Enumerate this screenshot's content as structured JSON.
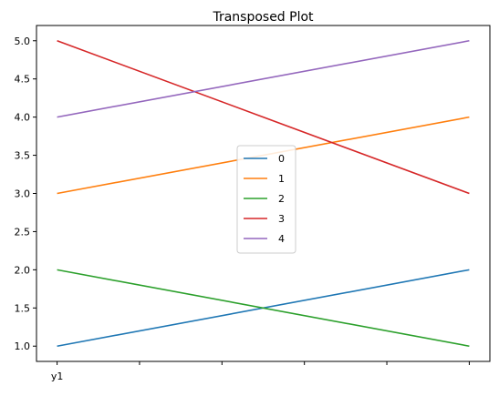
{
  "chart_data": {
    "type": "line",
    "title": "Transposed Plot",
    "xlabel": "",
    "ylabel": "",
    "x": [
      0,
      1
    ],
    "x_tick_labels": [
      "y1",
      "",
      "",
      "",
      "",
      ""
    ],
    "y_ticks": [
      1.0,
      1.5,
      2.0,
      2.5,
      3.0,
      3.5,
      4.0,
      4.5,
      5.0
    ],
    "y_tick_labels": [
      "1.0",
      "1.5",
      "2.0",
      "2.5",
      "3.0",
      "3.5",
      "4.0",
      "4.5",
      "5.0"
    ],
    "ylim": [
      0.8,
      5.2
    ],
    "xlim": [
      -0.05,
      1.05
    ],
    "grid": false,
    "legend_position": "center",
    "series": [
      {
        "name": "0",
        "values": [
          1,
          2
        ],
        "color": "#1f77b4"
      },
      {
        "name": "1",
        "values": [
          3,
          4
        ],
        "color": "#ff7f0e"
      },
      {
        "name": "2",
        "values": [
          2,
          1
        ],
        "color": "#2ca02c"
      },
      {
        "name": "3",
        "values": [
          5,
          3
        ],
        "color": "#d62728"
      },
      {
        "name": "4",
        "values": [
          4,
          5
        ],
        "color": "#9467bd"
      }
    ]
  }
}
